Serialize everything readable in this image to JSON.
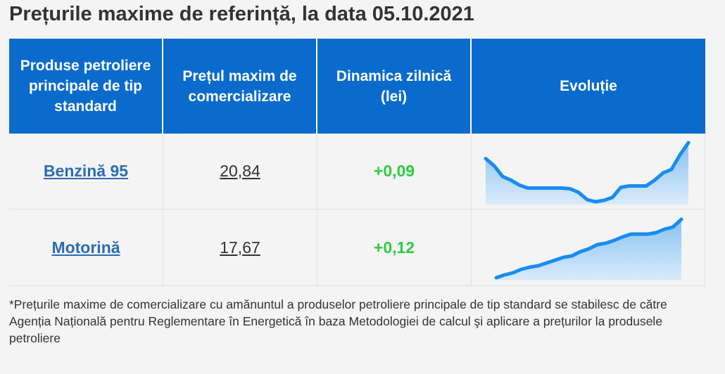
{
  "title": "Prețurile maxime de referință, la data 05.10.2021",
  "table": {
    "headers": [
      "Produse petroliere principale de tip standard",
      "Prețul maxim de comercializare",
      "Dinamica zilnică (lei)",
      "Evoluție"
    ],
    "rows": [
      {
        "product": "Benzină 95",
        "price": "20,84",
        "change": "+0,09",
        "trend": [
          64,
          54,
          39,
          34,
          27,
          23,
          23,
          23,
          23,
          23,
          22,
          17,
          7,
          4,
          6,
          10,
          24,
          26,
          26,
          26,
          34,
          44,
          49,
          69,
          86
        ]
      },
      {
        "product": "Motorină",
        "price": "17,67",
        "change": "+0,12",
        "trend": [
          0,
          4,
          7,
          12,
          15,
          17,
          21,
          25,
          29,
          31,
          37,
          41,
          47,
          49,
          53,
          58,
          62,
          62,
          62,
          64,
          69,
          72,
          83
        ]
      }
    ]
  },
  "footnote": "*Prețurile maxime de comercializare cu amănuntul a produselor petroliere principale de tip standard se stabilesc de către Agenția Națională pentru Reglementare în Energetică în baza Metodologiei de calcul şi aplicare a prețurilor la produsele petroliere"
}
